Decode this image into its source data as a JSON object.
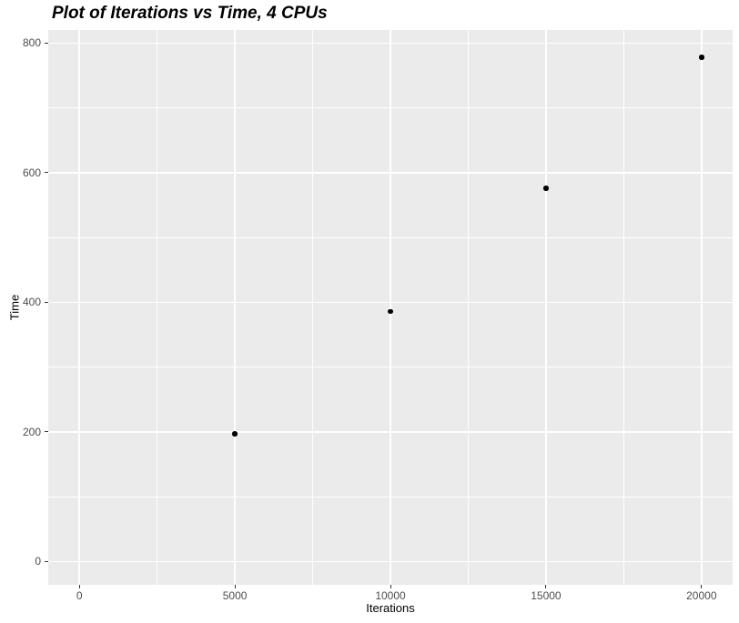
{
  "chart_data": {
    "type": "scatter",
    "title": "Plot of Iterations vs Time, 4 CPUs",
    "xlabel": "Iterations",
    "ylabel": "Time",
    "x": [
      5000,
      10000,
      15000,
      20000
    ],
    "y": [
      197,
      386,
      576,
      778
    ],
    "xlim": [
      -1000,
      21000
    ],
    "ylim": [
      -36,
      820
    ],
    "x_major_ticks": [
      0,
      5000,
      10000,
      15000,
      20000
    ],
    "x_minor_ticks": [
      2500,
      7500,
      12500,
      17500
    ],
    "y_major_ticks": [
      0,
      200,
      400,
      600,
      800
    ],
    "y_minor_ticks": [
      100,
      300,
      500,
      700
    ],
    "x_tick_labels": [
      "0",
      "5000",
      "10000",
      "15000",
      "20000"
    ],
    "y_tick_labels": [
      "0",
      "200",
      "400",
      "600",
      "800"
    ],
    "grid": true,
    "legend": "none",
    "style": "ggplot2",
    "colors": {
      "panel_background": "#EBEBEB",
      "gridline": "#FFFFFF",
      "point": "#000000",
      "tick_label": "#4D4D4D",
      "tick_mark": "#333333",
      "title": "#000000",
      "axis_title": "#000000",
      "figure_background": "#FFFFFF"
    }
  }
}
